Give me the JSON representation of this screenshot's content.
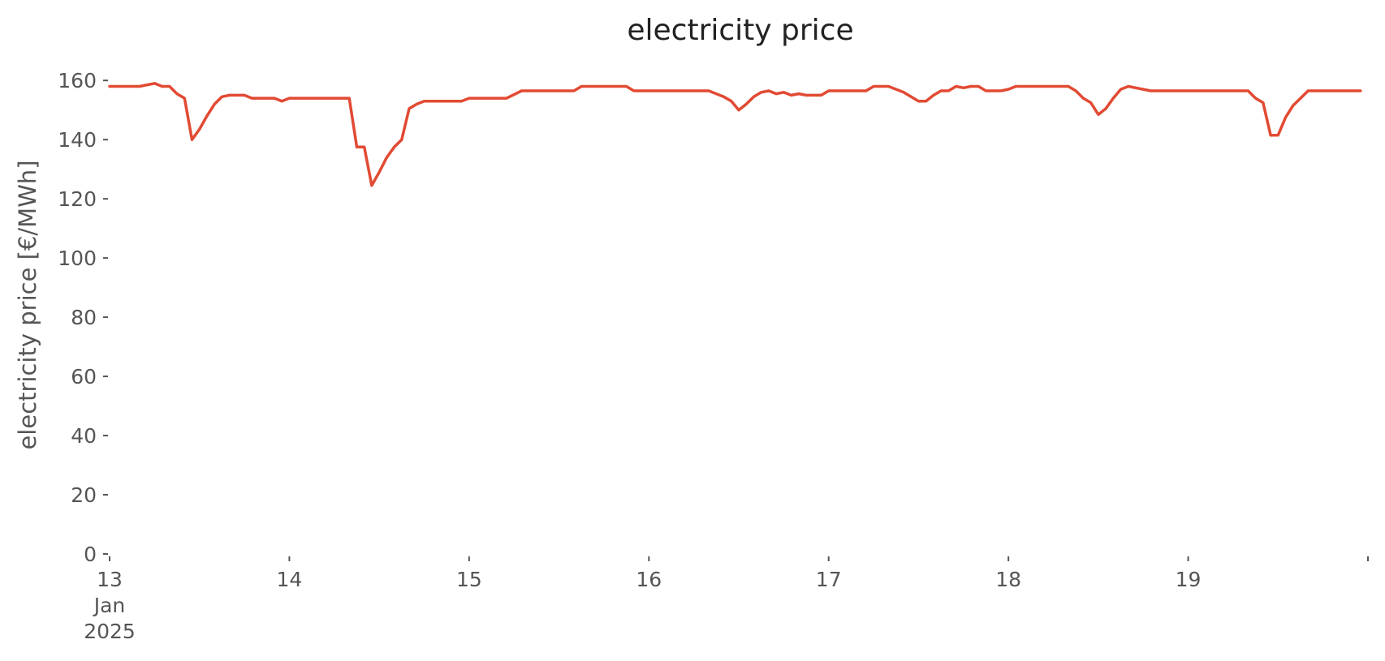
{
  "chart_data": {
    "type": "line",
    "title": "electricity price",
    "xlabel": "",
    "ylabel": "electricity price [€/MWh]",
    "ylim": [
      0,
      168
    ],
    "xlim": [
      "2025-01-13 00:00",
      "2025-01-20 00:00"
    ],
    "yticks": [
      0,
      20,
      40,
      60,
      80,
      100,
      120,
      140,
      160
    ],
    "xticks": [
      {
        "value": "2025-01-13",
        "label": [
          "13",
          "Jan",
          "2025"
        ]
      },
      {
        "value": "2025-01-14",
        "label": [
          "14"
        ]
      },
      {
        "value": "2025-01-15",
        "label": [
          "15"
        ]
      },
      {
        "value": "2025-01-16",
        "label": [
          "16"
        ]
      },
      {
        "value": "2025-01-17",
        "label": [
          "17"
        ]
      },
      {
        "value": "2025-01-18",
        "label": [
          "18"
        ]
      },
      {
        "value": "2025-01-19",
        "label": [
          "19"
        ]
      },
      {
        "value": "2025-01-20",
        "label": [
          ""
        ]
      }
    ],
    "grid": false,
    "legend": "none",
    "line_color": "#e24a33",
    "series": [
      {
        "points": [
          [
            "2025-01-13 00:00",
            158
          ],
          [
            "2025-01-13 02:00",
            158
          ],
          [
            "2025-01-13 04:00",
            158
          ],
          [
            "2025-01-13 06:00",
            159
          ],
          [
            "2025-01-13 07:00",
            158
          ],
          [
            "2025-01-13 08:00",
            158
          ],
          [
            "2025-01-13 09:00",
            155.5
          ],
          [
            "2025-01-13 10:00",
            154
          ],
          [
            "2025-01-13 11:00",
            140
          ],
          [
            "2025-01-13 12:00",
            143.5
          ],
          [
            "2025-01-13 13:00",
            148
          ],
          [
            "2025-01-13 14:00",
            152
          ],
          [
            "2025-01-13 15:00",
            154.5
          ],
          [
            "2025-01-13 16:00",
            155
          ],
          [
            "2025-01-13 17:00",
            155
          ],
          [
            "2025-01-13 18:00",
            155
          ],
          [
            "2025-01-13 19:00",
            154
          ],
          [
            "2025-01-13 21:00",
            154
          ],
          [
            "2025-01-13 22:00",
            154
          ],
          [
            "2025-01-13 23:00",
            153
          ],
          [
            "2025-01-14 00:00",
            154
          ],
          [
            "2025-01-14 08:00",
            154
          ],
          [
            "2025-01-14 09:00",
            137.5
          ],
          [
            "2025-01-14 10:00",
            137.5
          ],
          [
            "2025-01-14 11:00",
            124.5
          ],
          [
            "2025-01-14 12:00",
            129
          ],
          [
            "2025-01-14 13:00",
            134
          ],
          [
            "2025-01-14 14:00",
            137.5
          ],
          [
            "2025-01-14 15:00",
            140
          ],
          [
            "2025-01-14 16:00",
            150.5
          ],
          [
            "2025-01-14 17:00",
            152
          ],
          [
            "2025-01-14 18:00",
            153
          ],
          [
            "2025-01-14 20:00",
            153
          ],
          [
            "2025-01-14 22:00",
            153
          ],
          [
            "2025-01-14 23:00",
            153
          ],
          [
            "2025-01-15 00:00",
            154
          ],
          [
            "2025-01-15 02:00",
            154
          ],
          [
            "2025-01-15 04:00",
            154
          ],
          [
            "2025-01-15 05:00",
            154
          ],
          [
            "2025-01-15 07:00",
            156.5
          ],
          [
            "2025-01-15 10:00",
            156.5
          ],
          [
            "2025-01-15 14:00",
            156.5
          ],
          [
            "2025-01-15 15:00",
            158
          ],
          [
            "2025-01-15 18:00",
            158
          ],
          [
            "2025-01-15 21:00",
            158
          ],
          [
            "2025-01-15 22:00",
            156.5
          ],
          [
            "2025-01-16 02:00",
            156.5
          ],
          [
            "2025-01-16 06:00",
            156.5
          ],
          [
            "2025-01-16 08:00",
            156.5
          ],
          [
            "2025-01-16 10:00",
            154.5
          ],
          [
            "2025-01-16 11:00",
            153
          ],
          [
            "2025-01-16 12:00",
            150
          ],
          [
            "2025-01-16 13:00",
            152
          ],
          [
            "2025-01-16 14:00",
            154.5
          ],
          [
            "2025-01-16 15:00",
            156
          ],
          [
            "2025-01-16 16:00",
            156.5
          ],
          [
            "2025-01-16 17:00",
            155.5
          ],
          [
            "2025-01-16 18:00",
            156
          ],
          [
            "2025-01-16 19:00",
            155
          ],
          [
            "2025-01-16 20:00",
            155.5
          ],
          [
            "2025-01-16 21:00",
            155
          ],
          [
            "2025-01-16 23:00",
            155
          ],
          [
            "2025-01-17 00:00",
            156.5
          ],
          [
            "2025-01-17 03:00",
            156.5
          ],
          [
            "2025-01-17 05:00",
            156.5
          ],
          [
            "2025-01-17 06:00",
            158
          ],
          [
            "2025-01-17 08:00",
            158
          ],
          [
            "2025-01-17 10:00",
            156
          ],
          [
            "2025-01-17 12:00",
            153
          ],
          [
            "2025-01-17 13:00",
            153
          ],
          [
            "2025-01-17 14:00",
            155
          ],
          [
            "2025-01-17 15:00",
            156.5
          ],
          [
            "2025-01-17 16:00",
            156.5
          ],
          [
            "2025-01-17 17:00",
            158
          ],
          [
            "2025-01-17 18:00",
            157.5
          ],
          [
            "2025-01-17 19:00",
            158
          ],
          [
            "2025-01-17 20:00",
            158
          ],
          [
            "2025-01-17 21:00",
            156.5
          ],
          [
            "2025-01-17 22:00",
            156.5
          ],
          [
            "2025-01-17 23:00",
            156.5
          ],
          [
            "2025-01-18 00:00",
            157
          ],
          [
            "2025-01-18 01:00",
            158
          ],
          [
            "2025-01-18 04:00",
            158
          ],
          [
            "2025-01-18 08:00",
            158
          ],
          [
            "2025-01-18 09:00",
            156.5
          ],
          [
            "2025-01-18 10:00",
            154
          ],
          [
            "2025-01-18 11:00",
            152.5
          ],
          [
            "2025-01-18 12:00",
            148.5
          ],
          [
            "2025-01-18 13:00",
            150.5
          ],
          [
            "2025-01-18 14:00",
            154
          ],
          [
            "2025-01-18 15:00",
            157
          ],
          [
            "2025-01-18 16:00",
            158
          ],
          [
            "2025-01-18 17:00",
            157.5
          ],
          [
            "2025-01-18 18:00",
            157
          ],
          [
            "2025-01-18 19:00",
            156.5
          ],
          [
            "2025-01-18 22:00",
            156.5
          ],
          [
            "2025-01-19 02:00",
            156.5
          ],
          [
            "2025-01-19 06:00",
            156.5
          ],
          [
            "2025-01-19 08:00",
            156.5
          ],
          [
            "2025-01-19 09:00",
            154
          ],
          [
            "2025-01-19 10:00",
            152.5
          ],
          [
            "2025-01-19 11:00",
            141.5
          ],
          [
            "2025-01-19 12:00",
            141.5
          ],
          [
            "2025-01-19 13:00",
            147.5
          ],
          [
            "2025-01-19 14:00",
            151.5
          ],
          [
            "2025-01-19 15:00",
            154
          ],
          [
            "2025-01-19 16:00",
            156.5
          ],
          [
            "2025-01-19 20:00",
            156.5
          ],
          [
            "2025-01-19 23:00",
            156.5
          ]
        ]
      }
    ]
  }
}
